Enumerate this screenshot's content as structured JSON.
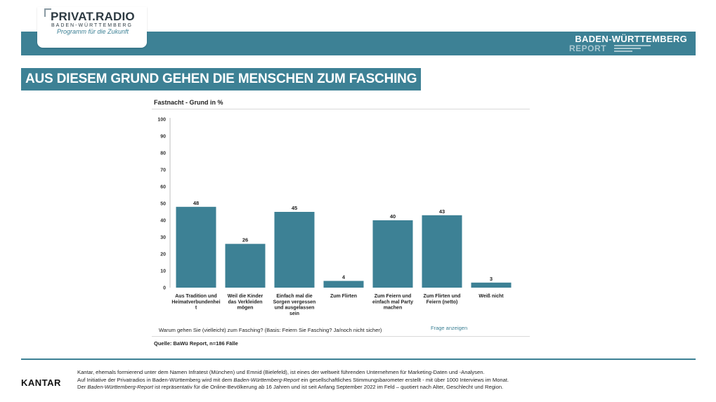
{
  "header": {
    "logo_title": "PRIVAT.RADIO",
    "logo_sub": "BADEN-WÜRTTEMBERG",
    "logo_tagline": "Programm für die Zukunft",
    "report_title": "BADEN-WÜRTTEMBERG",
    "report_sub": "REPORT",
    "brand_color": "#3d8195"
  },
  "headline": "AUS DIESEM GRUND GEHEN DIE MENSCHEN ZUM FASCHING",
  "chart_data": {
    "type": "bar",
    "title": "Fastnacht - Grund in %",
    "categories": [
      [
        "Aus Tradition und",
        "Heimatverbundenhei",
        "t"
      ],
      [
        "Weil die Kinder",
        "das Verkleiden",
        "mögen"
      ],
      [
        "Einfach mal die",
        "Sorgen vergessen",
        "und ausgelassen",
        "sein"
      ],
      [
        "Zum Flirten"
      ],
      [
        "Zum Feiern und",
        "einfach mal Party",
        "machen"
      ],
      [
        "Zum Flirten und",
        "Feiern (netto)"
      ],
      [
        "Weiß nicht"
      ]
    ],
    "values": [
      48,
      26,
      45,
      4,
      40,
      43,
      3
    ],
    "yticks": [
      "0",
      "10",
      "20",
      "30",
      "40",
      "50",
      "60",
      "70",
      "80",
      "90",
      "100"
    ],
    "ylim": [
      0,
      100
    ],
    "xlabel": "",
    "ylabel": "",
    "bar_color": "#3d8195",
    "grid": false
  },
  "question": "Warum gehen Sie (vielleicht) zum Fasching? (Basis: Feiern Sie Fasching? Ja/noch nicht sicher)",
  "frage_link": "Frage anzeigen",
  "source": "Quelle: BaWü Report, n=186 Fälle",
  "footer": {
    "kantar": "KANTAR",
    "line1": "Kantar, ehemals formierend unter dem Namen Infratest (München) und Emnid (Bielefeld), ist eines der weltweit führenden Unternehmen für Marketing-Daten und -Analysen.",
    "line2_a": "Auf Initiative der Privatradios in Baden-Württemberg wird mit dem ",
    "line2_i": "Baden-Württemberg-Report",
    "line2_b": " ein gesellschaftliches Stimmungsbarometer erstellt - mit über 1000 Interviews im Monat.",
    "line3_a": "Der ",
    "line3_i": "Baden-Württemberg-Report",
    "line3_b": " ist repräsentativ für die Online-Bevölkerung ab 16 Jahren und ist seit Anfang September 2022 im Feld – quotiert nach Alter, Geschlecht und Region."
  }
}
